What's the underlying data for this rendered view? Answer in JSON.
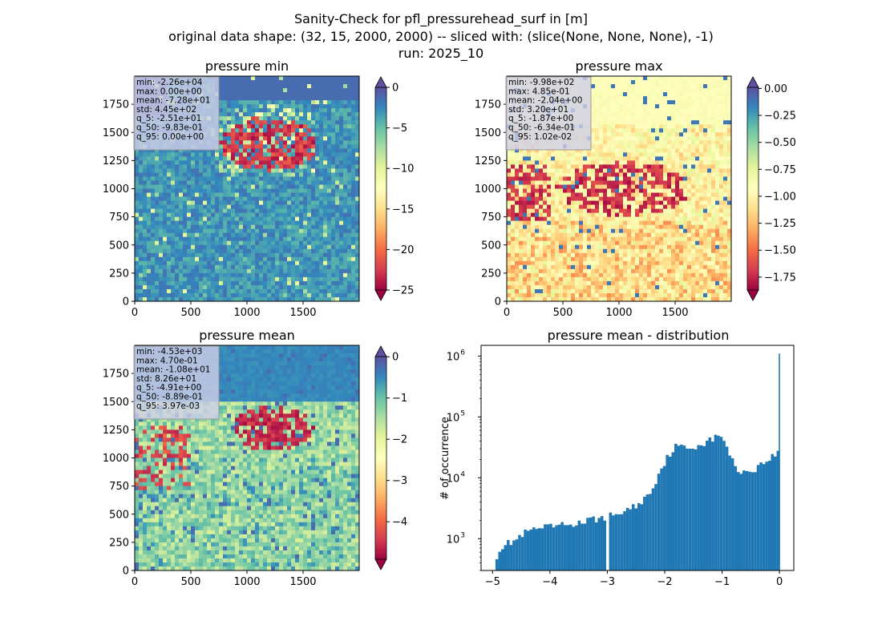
{
  "figure": {
    "suptitle_lines": [
      "Sanity-Check for pfl_pressurehead_surf in [m]",
      "original data shape: (32, 15, 2000, 2000) -- sliced with: (slice(None, None, None), -1)",
      "run: 2025_10"
    ]
  },
  "colors": {
    "spectral": [
      "#9e0142",
      "#d53e4f",
      "#f46d43",
      "#fdae61",
      "#fee08b",
      "#ffffbf",
      "#e6f598",
      "#abdda4",
      "#66c2a5",
      "#3288bd",
      "#5e4fa2"
    ],
    "hist_bar": "#1f77b4",
    "stats_box": "#cfcfe8"
  },
  "chart_data": [
    {
      "type": "heatmap",
      "title": "pressure min",
      "x_ticks": [
        "0",
        "500",
        "1000",
        "1500"
      ],
      "y_ticks": [
        "0",
        "250",
        "500",
        "750",
        "1000",
        "1250",
        "1500",
        "1750"
      ],
      "xlim": [
        0,
        2000
      ],
      "ylim": [
        0,
        2000
      ],
      "colorbar": {
        "range": [
          -25,
          0
        ],
        "ticks": [
          "0",
          "−5",
          "−10",
          "−15",
          "−20",
          "−25"
        ],
        "extend": "both"
      },
      "stats": [
        "min: -2.26e+04",
        "max: 0.00e+00",
        "mean: -7.28e+01",
        "std: 4.45e+02",
        "q_5: -2.51e+01",
        "q_50: -9.83e-01",
        "q_95: 0.00e+00"
      ]
    },
    {
      "type": "heatmap",
      "title": "pressure max",
      "x_ticks": [
        "0",
        "500",
        "1000",
        "1500"
      ],
      "y_ticks": [
        "0",
        "250",
        "500",
        "750",
        "1000",
        "1250",
        "1500",
        "1750"
      ],
      "xlim": [
        0,
        2000
      ],
      "ylim": [
        0,
        2000
      ],
      "colorbar": {
        "range": [
          -1.87,
          0.0102
        ],
        "ticks": [
          "0.00",
          "−0.25",
          "−0.50",
          "−0.75",
          "−1.00",
          "−1.25",
          "−1.50",
          "−1.75"
        ],
        "extend": "both"
      },
      "stats": [
        "min: -9.98e+02",
        "max: 4.85e-01",
        "mean: -2.04e+00",
        "std: 3.20e+01",
        "q_5: -1.87e+00",
        "q_50: -6.34e-01",
        "q_95: 1.02e-02"
      ]
    },
    {
      "type": "heatmap",
      "title": "pressure mean",
      "x_ticks": [
        "0",
        "500",
        "1000",
        "1500"
      ],
      "y_ticks": [
        "0",
        "250",
        "500",
        "750",
        "1000",
        "1250",
        "1500",
        "1750"
      ],
      "xlim": [
        0,
        2000
      ],
      "ylim": [
        0,
        2000
      ],
      "colorbar": {
        "range": [
          -4.91,
          0.00397
        ],
        "ticks": [
          "0",
          "−1",
          "−2",
          "−3",
          "−4"
        ],
        "extend": "both"
      },
      "stats": [
        "min: -4.53e+03",
        "max: 4.70e-01",
        "mean: -1.08e+01",
        "std: 8.26e+01",
        "q_5: -4.91e+00",
        "q_50: -8.89e-01",
        "q_95: 3.97e-03"
      ]
    },
    {
      "type": "bar",
      "title": "pressure mean - distribution",
      "ylabel": "# of occurrence",
      "yscale": "log",
      "xlim": [
        -5.2,
        0.25
      ],
      "ylim": [
        300,
        1500000
      ],
      "x_ticks": [
        "−5",
        "−4",
        "−3",
        "−2",
        "−1",
        "0"
      ],
      "y_ticks": [
        "10^3",
        "10^4",
        "10^5",
        "10^6"
      ],
      "bin_start": -4.95,
      "bin_end": 0.0,
      "bin_count": 100,
      "anchors": [
        [
          -4.95,
          450
        ],
        [
          -4.9,
          620
        ],
        [
          -4.8,
          800
        ],
        [
          -4.7,
          850
        ],
        [
          -4.6,
          950
        ],
        [
          -4.5,
          1100
        ],
        [
          -4.4,
          1300
        ],
        [
          -4.2,
          1450
        ],
        [
          -4.0,
          1550
        ],
        [
          -3.8,
          1650
        ],
        [
          -3.5,
          1800
        ],
        [
          -3.2,
          2100
        ],
        [
          -3.0,
          2300
        ],
        [
          -2.8,
          2600
        ],
        [
          -2.6,
          3100
        ],
        [
          -2.4,
          4000
        ],
        [
          -2.3,
          5200
        ],
        [
          -2.2,
          7000
        ],
        [
          -2.1,
          12000
        ],
        [
          -2.0,
          18000
        ],
        [
          -1.9,
          26000
        ],
        [
          -1.8,
          33000
        ],
        [
          -1.7,
          32000
        ],
        [
          -1.6,
          30000
        ],
        [
          -1.5,
          32000
        ],
        [
          -1.4,
          35000
        ],
        [
          -1.3,
          38000
        ],
        [
          -1.2,
          42000
        ],
        [
          -1.1,
          46000
        ],
        [
          -1.0,
          48000
        ],
        [
          -0.95,
          42000
        ],
        [
          -0.9,
          30000
        ],
        [
          -0.85,
          22000
        ],
        [
          -0.8,
          17000
        ],
        [
          -0.75,
          14000
        ],
        [
          -0.7,
          13500
        ],
        [
          -0.6,
          12500
        ],
        [
          -0.5,
          13000
        ],
        [
          -0.4,
          14500
        ],
        [
          -0.3,
          17000
        ],
        [
          -0.2,
          20000
        ],
        [
          -0.1,
          23000
        ],
        [
          -0.02,
          26000
        ]
      ],
      "special_bins": [
        [
          -3.0,
          200
        ],
        [
          0.0,
          1100000
        ]
      ]
    }
  ]
}
